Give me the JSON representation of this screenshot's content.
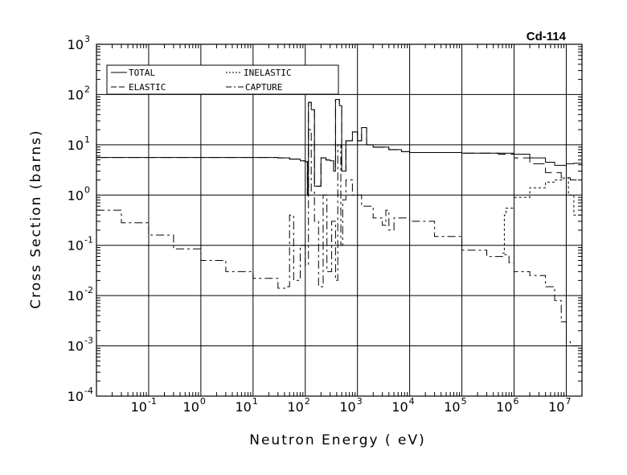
{
  "chart_data": {
    "type": "line",
    "title": "Cd-114",
    "xlabel": "Neutron Energy ( eV)",
    "ylabel": "Cross Section (barns)",
    "x_scale": "log",
    "y_scale": "log",
    "xlim": [
      0.01,
      20000000
    ],
    "ylim": [
      0.0001,
      1000
    ],
    "grid": true,
    "legend_position": "top-left",
    "x_ticks": [
      {
        "base": "10",
        "exp": "-1",
        "value": 0.1
      },
      {
        "base": "10",
        "exp": "0",
        "value": 1
      },
      {
        "base": "10",
        "exp": "1",
        "value": 10
      },
      {
        "base": "10",
        "exp": "2",
        "value": 100
      },
      {
        "base": "10",
        "exp": "3",
        "value": 1000
      },
      {
        "base": "10",
        "exp": "4",
        "value": 10000
      },
      {
        "base": "10",
        "exp": "5",
        "value": 100000
      },
      {
        "base": "10",
        "exp": "6",
        "value": 1000000
      },
      {
        "base": "10",
        "exp": "7",
        "value": 10000000
      }
    ],
    "y_ticks": [
      {
        "base": "10",
        "exp": "3",
        "value": 1000
      },
      {
        "base": "10",
        "exp": "2",
        "value": 100
      },
      {
        "base": "10",
        "exp": "1",
        "value": 10
      },
      {
        "base": "10",
        "exp": "0",
        "value": 1
      },
      {
        "base": "10",
        "exp": "-1",
        "value": 0.1
      },
      {
        "base": "10",
        "exp": "-2",
        "value": 0.01
      },
      {
        "base": "10",
        "exp": "-3",
        "value": 0.001
      },
      {
        "base": "10",
        "exp": "-4",
        "value": 0.0001
      }
    ],
    "series": [
      {
        "name": "TOTAL",
        "dash": "none",
        "points": [
          [
            0.01,
            5.6
          ],
          [
            0.1,
            5.6
          ],
          [
            1,
            5.6
          ],
          [
            10,
            5.6
          ],
          [
            30,
            5.5
          ],
          [
            50,
            5.2
          ],
          [
            80,
            4.8
          ],
          [
            100,
            4.6
          ],
          [
            110,
            1.0
          ],
          [
            115,
            70
          ],
          [
            130,
            50
          ],
          [
            150,
            1.5
          ],
          [
            200,
            5.5
          ],
          [
            250,
            5.0
          ],
          [
            300,
            4.8
          ],
          [
            350,
            3.0
          ],
          [
            380,
            80
          ],
          [
            450,
            60
          ],
          [
            500,
            3.0
          ],
          [
            600,
            12
          ],
          [
            800,
            18
          ],
          [
            1000,
            12
          ],
          [
            1200,
            22
          ],
          [
            1500,
            10
          ],
          [
            2000,
            9
          ],
          [
            3000,
            9
          ],
          [
            4000,
            8
          ],
          [
            7000,
            7.3
          ],
          [
            10000,
            7.0
          ],
          [
            100000,
            6.8
          ],
          [
            1000000,
            6.5
          ],
          [
            2000000,
            5.5
          ],
          [
            4000000,
            4.5
          ],
          [
            6000000,
            3.9
          ],
          [
            10000000,
            4.2
          ],
          [
            14000000,
            4.3
          ],
          [
            20000000,
            3.6
          ]
        ]
      },
      {
        "name": "ELASTIC",
        "dash": "14 6",
        "points": [
          [
            0.01,
            5.6
          ],
          [
            0.1,
            5.6
          ],
          [
            1,
            5.6
          ],
          [
            10,
            5.6
          ],
          [
            30,
            5.5
          ],
          [
            50,
            5.2
          ],
          [
            80,
            4.8
          ],
          [
            100,
            4.6
          ],
          [
            110,
            1.0
          ],
          [
            115,
            70
          ],
          [
            130,
            50
          ],
          [
            150,
            1.5
          ],
          [
            200,
            5.5
          ],
          [
            250,
            5.0
          ],
          [
            300,
            4.8
          ],
          [
            350,
            3.0
          ],
          [
            380,
            80
          ],
          [
            450,
            60
          ],
          [
            500,
            3.0
          ],
          [
            600,
            12
          ],
          [
            800,
            18
          ],
          [
            1000,
            12
          ],
          [
            1200,
            22
          ],
          [
            1500,
            10
          ],
          [
            2000,
            9
          ],
          [
            3000,
            9
          ],
          [
            4000,
            8
          ],
          [
            7000,
            7.3
          ],
          [
            10000,
            7.0
          ],
          [
            100000,
            6.8
          ],
          [
            500000,
            6.5
          ],
          [
            1000000,
            5.5
          ],
          [
            2000000,
            4.2
          ],
          [
            4000000,
            2.8
          ],
          [
            8000000,
            2.2
          ],
          [
            12000000,
            2.0
          ],
          [
            20000000,
            1.8
          ]
        ]
      },
      {
        "name": "INELASTIC",
        "dash": "3 3",
        "points": [
          [
            600000,
            0.07
          ],
          [
            650000,
            0.4
          ],
          [
            700000,
            0.55
          ],
          [
            1000000,
            0.9
          ],
          [
            2000000,
            1.4
          ],
          [
            4000000,
            1.8
          ],
          [
            6000000,
            2.0
          ],
          [
            9000000,
            2.2
          ],
          [
            11000000,
            1.0
          ],
          [
            14000000,
            0.4
          ],
          [
            20000000,
            0.25
          ]
        ]
      },
      {
        "name": "CAPTURE",
        "dash": "10 4 3 4",
        "points": [
          [
            0.01,
            0.5
          ],
          [
            0.03,
            0.28
          ],
          [
            0.1,
            0.16
          ],
          [
            0.3,
            0.085
          ],
          [
            1,
            0.05
          ],
          [
            3,
            0.03
          ],
          [
            10,
            0.022
          ],
          [
            30,
            0.014
          ],
          [
            45,
            0.015
          ],
          [
            50,
            0.4
          ],
          [
            60,
            0.02
          ],
          [
            80,
            0.1
          ],
          [
            100,
            0.04
          ],
          [
            115,
            20
          ],
          [
            130,
            1.2
          ],
          [
            150,
            0.3
          ],
          [
            180,
            0.015
          ],
          [
            220,
            1.0
          ],
          [
            260,
            0.03
          ],
          [
            320,
            0.3
          ],
          [
            380,
            0.02
          ],
          [
            420,
            10
          ],
          [
            480,
            0.1
          ],
          [
            520,
            0.8
          ],
          [
            600,
            2.0
          ],
          [
            800,
            1.0
          ],
          [
            1200,
            0.6
          ],
          [
            1500,
            0.6
          ],
          [
            2000,
            0.35
          ],
          [
            3000,
            0.25
          ],
          [
            3500,
            0.5
          ],
          [
            4000,
            0.2
          ],
          [
            5000,
            0.35
          ],
          [
            7000,
            0.35
          ],
          [
            10000,
            0.3
          ],
          [
            30000,
            0.15
          ],
          [
            100000,
            0.08
          ],
          [
            300000,
            0.06
          ],
          [
            600000,
            0.065
          ],
          [
            800000,
            0.045
          ],
          [
            1000000,
            0.03
          ],
          [
            2000000,
            0.025
          ],
          [
            4000000,
            0.015
          ],
          [
            6000000,
            0.008
          ],
          [
            8000000,
            0.003
          ],
          [
            10000000,
            0.0012
          ],
          [
            12000000,
            0.001
          ],
          [
            20000000,
            0.001
          ]
        ]
      }
    ]
  }
}
